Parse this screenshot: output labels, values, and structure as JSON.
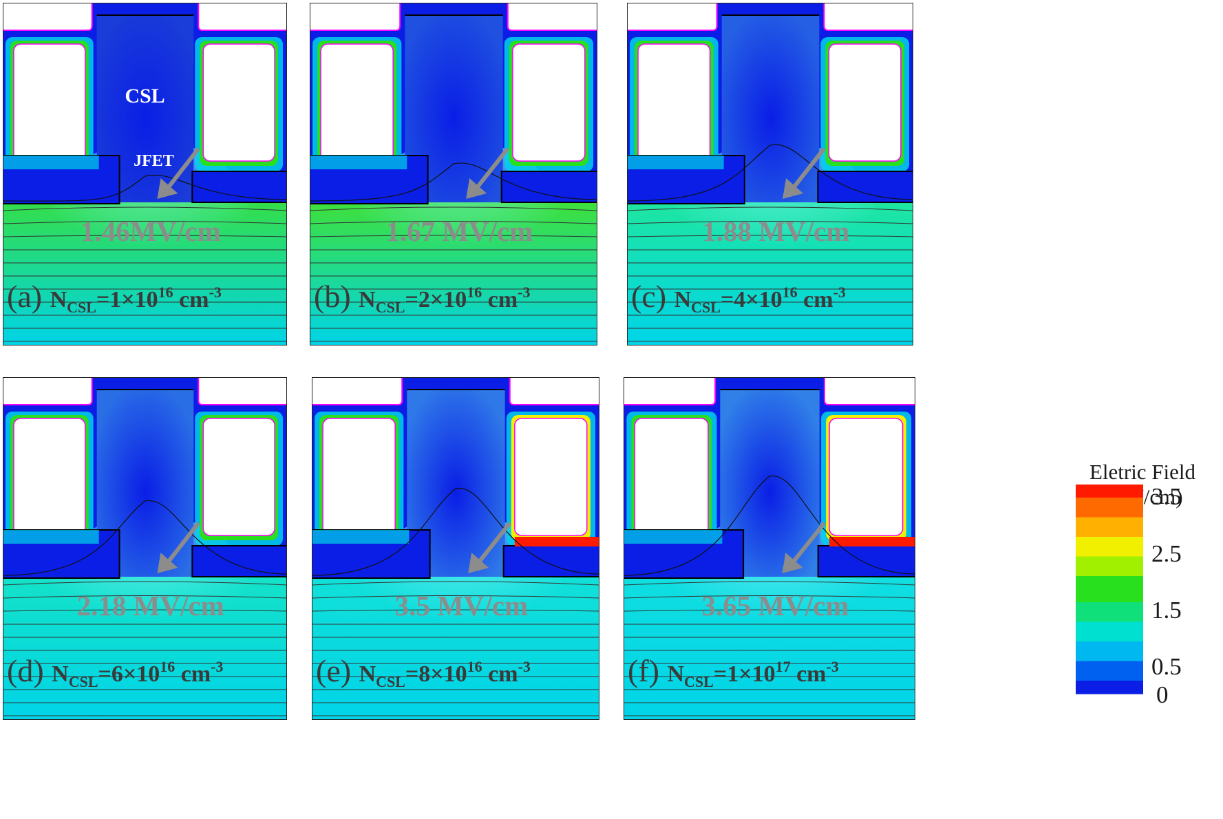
{
  "colors": {
    "field_low": "#0a1ee6",
    "field_mid_low": "#00d4e8",
    "field_mid": "#28e01e",
    "field_high": "#f0f000",
    "field_max": "#ff1a00",
    "gray_arrow": "#8c8c8c",
    "contact": "#ff00ff"
  },
  "labels": {
    "csl": "CSL",
    "jfet": "JFET"
  },
  "panels": [
    {
      "letter": "(a)",
      "n": "N",
      "sub": "CSL",
      "value": "=1×10",
      "exp": "16",
      "unit": " cm",
      "unit_exp": "-3",
      "peak": "1.46MV/cm",
      "bulk": "#34de4a",
      "csl_fill": "#1a3cd8",
      "csl_level": 0.1,
      "hot_right": 0.0
    },
    {
      "letter": "(b)",
      "n": "N",
      "sub": "CSL",
      "value": "=2×10",
      "exp": "16",
      "unit": " cm",
      "unit_exp": "-3",
      "peak": "1.67 MV/cm",
      "bulk": "#3ee03a",
      "csl_fill": "#1f50e0",
      "csl_level": 0.2,
      "hot_right": 0.1
    },
    {
      "letter": "(c)",
      "n": "N",
      "sub": "CSL",
      "value": "=4×10",
      "exp": "16",
      "unit": " cm",
      "unit_exp": "-3",
      "peak": "1.88 MV/cm",
      "bulk": "#1ee6a0",
      "csl_fill": "#2560e4",
      "csl_level": 0.35,
      "hot_right": 0.3
    },
    {
      "letter": "(d)",
      "n": "N",
      "sub": "CSL",
      "value": "=6×10",
      "exp": "16",
      "unit": " cm",
      "unit_exp": "-3",
      "peak": "2.18 MV/cm",
      "bulk": "#14e2c8",
      "csl_fill": "#2a6ee6",
      "csl_level": 0.5,
      "hot_right": 0.5
    },
    {
      "letter": "(e)",
      "n": "N",
      "sub": "CSL",
      "value": "=8×10",
      "exp": "16",
      "unit": " cm",
      "unit_exp": "-3",
      "peak": "3.5 MV/cm",
      "bulk": "#12e0d8",
      "csl_fill": "#2f78e8",
      "csl_level": 0.6,
      "hot_right": 0.8
    },
    {
      "letter": "(f)",
      "n": "N",
      "sub": "CSL",
      "value": "=1×10",
      "exp": "17",
      "unit": " cm",
      "unit_exp": "-3",
      "peak": "3.65 MV/cm",
      "bulk": "#10dee0",
      "csl_fill": "#3080e8",
      "csl_level": 0.7,
      "hot_right": 1.0
    }
  ],
  "legend": {
    "title_line1": "Eletric Field",
    "title_line2": "(MV/cm)",
    "ticks": [
      {
        "label": "3.5",
        "value": 3.5
      },
      {
        "label": "2.5",
        "value": 2.5
      },
      {
        "label": "1.5",
        "value": 1.5
      },
      {
        "label": "0.5",
        "value": 0.5
      },
      {
        "label": "0",
        "value": 0
      }
    ],
    "max": 3.7
  }
}
